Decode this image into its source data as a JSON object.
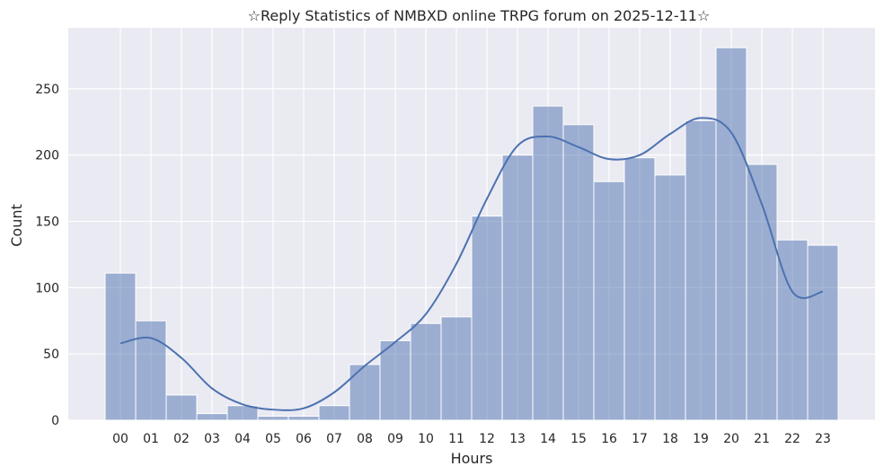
{
  "chart_data": {
    "type": "bar",
    "title": "☆Reply Statistics of NMBXD online TRPG forum on 2025-12-11☆",
    "xlabel": "Hours",
    "ylabel": "Count",
    "categories": [
      "00",
      "01",
      "02",
      "03",
      "04",
      "05",
      "06",
      "07",
      "08",
      "09",
      "10",
      "11",
      "12",
      "13",
      "14",
      "15",
      "16",
      "17",
      "18",
      "19",
      "20",
      "21",
      "22",
      "23"
    ],
    "values": [
      111,
      75,
      19,
      5,
      11,
      3,
      3,
      11,
      42,
      60,
      73,
      78,
      154,
      200,
      237,
      223,
      180,
      198,
      185,
      226,
      281,
      193,
      136,
      132
    ],
    "kde": [
      58,
      62,
      47,
      24,
      12,
      8,
      9,
      21,
      41,
      59,
      80,
      118,
      167,
      207,
      214,
      206,
      197,
      200,
      216,
      228,
      217,
      163,
      97
    ],
    "kde_end": 97,
    "ylim": [
      0,
      296
    ],
    "yticks": [
      0,
      50,
      100,
      150,
      200,
      250
    ],
    "grid": true,
    "colors": {
      "background": "#eaeaf2",
      "grid": "#ffffff",
      "bar_fill": "#4c72b0",
      "bar_opacity": 0.5,
      "kde_line": "#4c72b0"
    }
  }
}
